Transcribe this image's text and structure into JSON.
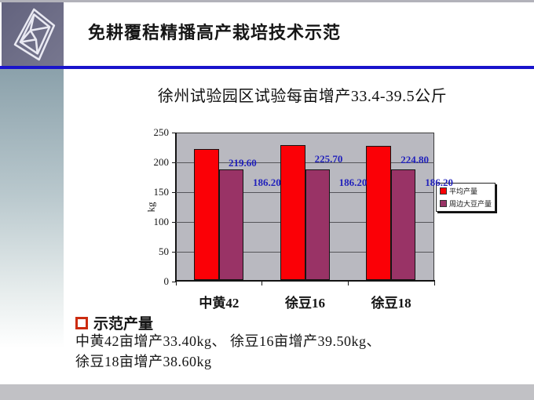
{
  "slide": {
    "title": "免耕覆秸精播高产栽培技术示范",
    "accent_line_color": "#1914cc",
    "footer_color": "#c1c1c5",
    "logo_bg_color": "#6b6b85"
  },
  "chart_data": {
    "type": "bar",
    "title": "徐州试验园区试验每亩增产33.4-39.5公斤",
    "categories": [
      "中黄42",
      "徐豆16",
      "徐豆18"
    ],
    "series": [
      {
        "name": "平均产量",
        "color": "#fb0006",
        "values": [
          219.6,
          225.7,
          224.8
        ]
      },
      {
        "name": "周边大豆产量",
        "color": "#993366",
        "values": [
          186.2,
          186.2,
          186.2
        ]
      }
    ],
    "data_labels": [
      "219.60",
      "225.70",
      "224.80",
      "186.20",
      "186.20",
      "186.20"
    ],
    "xlabel": "",
    "ylabel": "kg",
    "ylim": [
      0,
      250
    ],
    "yticks": [
      0,
      50,
      100,
      150,
      200,
      250
    ],
    "grid": true,
    "plot_bg": "#b9b9c0",
    "data_label_color": "#2222bb",
    "legend_position": "right-overlapping-plot-edge"
  },
  "notes": {
    "bullet_title": "示范产量",
    "lines": [
      "中黄42亩增产33.40kg、 徐豆16亩增产39.50kg、",
      "徐豆18亩增产38.60kg"
    ]
  }
}
